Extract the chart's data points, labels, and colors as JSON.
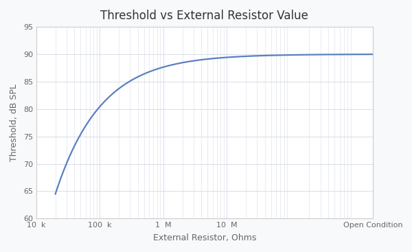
{
  "title": "Threshold vs External Resistor Value",
  "xlabel": "External Resistor, Ohms",
  "ylabel": "Threshold, dB SPL",
  "ylim": [
    60,
    95
  ],
  "yticks": [
    60,
    65,
    70,
    75,
    80,
    85,
    90,
    95
  ],
  "line_color": "#5B7FC0",
  "line_width": 1.6,
  "bg_color": "#F8F9FB",
  "plot_bg_color": "#FFFFFF",
  "grid_color": "#D8DCE8",
  "title_fontsize": 12,
  "label_fontsize": 9,
  "tick_fontsize": 8,
  "x_start": 20000,
  "x_open": 2000000000.0,
  "asymptote": 90.0,
  "start_db": 64.5,
  "curve_k": 1.4,
  "xtick_positions": [
    10000,
    100000,
    1000000,
    10000000,
    2000000000
  ],
  "xtick_labels": [
    "10  k",
    "100  k",
    "1  M",
    "10  M",
    "Open Condition"
  ]
}
